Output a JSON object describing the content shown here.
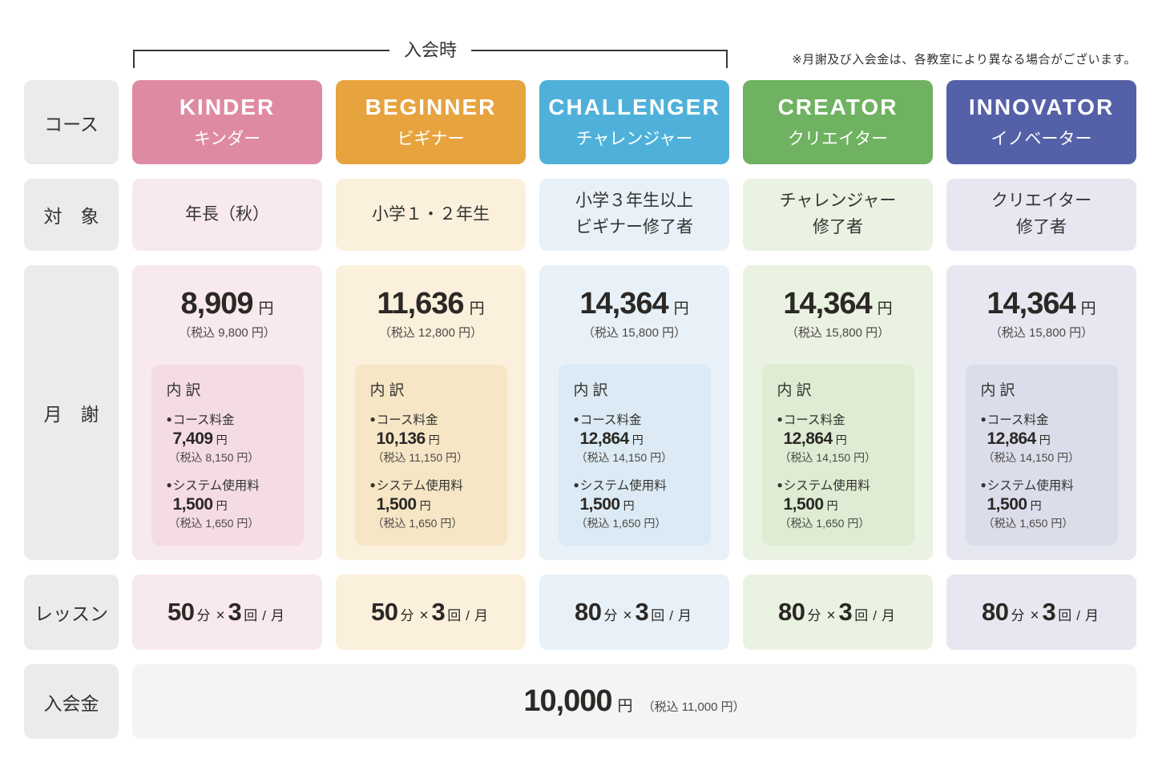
{
  "top": {
    "bracket_label": "入会時",
    "note": "※月謝及び入会金は、各教室により異なる場合がございます。"
  },
  "row_labels": {
    "course": "コース",
    "target": "対　象",
    "monthly": "月　謝",
    "lesson": "レッスン",
    "enrollment": "入会金"
  },
  "units": {
    "yen": "円",
    "min": "分",
    "times": "×",
    "kai": "回",
    "per": "/",
    "month": "月"
  },
  "breakdown": {
    "title": "内訳",
    "bullet": "●",
    "course_label": "コース料金",
    "system_label": "システム使用料"
  },
  "columns": [
    {
      "name_en": "KINDER",
      "name_ja": "キンダー",
      "target": "年長（秋）",
      "monthly_fee": "8,909",
      "monthly_tax": "（税込 9,800 円）",
      "course_fee": "7,409",
      "course_tax": "（税込 8,150 円）",
      "system_fee": "1,500",
      "system_tax": "（税込 1,650 円）",
      "lesson_min": "50",
      "lesson_count": "3",
      "colors": {
        "header": "#df8aa3",
        "cell": "#f8e9ee",
        "box": "#f4dbe5"
      }
    },
    {
      "name_en": "BEGINNER",
      "name_ja": "ビギナー",
      "target": "小学１・２年生",
      "monthly_fee": "11,636",
      "monthly_tax": "（税込 12,800 円）",
      "course_fee": "10,136",
      "course_tax": "（税込 11,150 円）",
      "system_fee": "1,500",
      "system_tax": "（税込 1,650 円）",
      "lesson_min": "50",
      "lesson_count": "3",
      "colors": {
        "header": "#e7a33e",
        "cell": "#fbf0dc",
        "box": "#f6e6c6"
      }
    },
    {
      "name_en": "CHALLENGER",
      "name_ja": "チャレンジャー",
      "target": "小学３年生以上\nビギナー修了者",
      "monthly_fee": "14,364",
      "monthly_tax": "（税込 15,800 円）",
      "course_fee": "12,864",
      "course_tax": "（税込 14,150 円）",
      "system_fee": "1,500",
      "system_tax": "（税込 1,650 円）",
      "lesson_min": "80",
      "lesson_count": "3",
      "colors": {
        "header": "#4fb1da",
        "cell": "#e8f1f8",
        "box": "#dbeaf4"
      }
    },
    {
      "name_en": "CREATOR",
      "name_ja": "クリエイター",
      "target": "チャレンジャー\n修了者",
      "monthly_fee": "14,364",
      "monthly_tax": "（税込 15,800 円）",
      "course_fee": "12,864",
      "course_tax": "（税込 14,150 円）",
      "system_fee": "1,500",
      "system_tax": "（税込 1,650 円）",
      "lesson_min": "80",
      "lesson_count": "3",
      "colors": {
        "header": "#6fb261",
        "cell": "#eaf2e2",
        "box": "#ddecd2"
      }
    },
    {
      "name_en": "INNOVATOR",
      "name_ja": "イノベーター",
      "target": "クリエイター\n修了者",
      "monthly_fee": "14,364",
      "monthly_tax": "（税込 15,800 円）",
      "course_fee": "12,864",
      "course_tax": "（税込 14,150 円）",
      "system_fee": "1,500",
      "system_tax": "（税込 1,650 円）",
      "lesson_min": "80",
      "lesson_count": "3",
      "colors": {
        "header": "#5460a8",
        "cell": "#e6e7f1",
        "box": "#dbddeb"
      }
    }
  ],
  "enrollment": {
    "fee": "10,000",
    "tax": "（税込 11,000 円）"
  }
}
